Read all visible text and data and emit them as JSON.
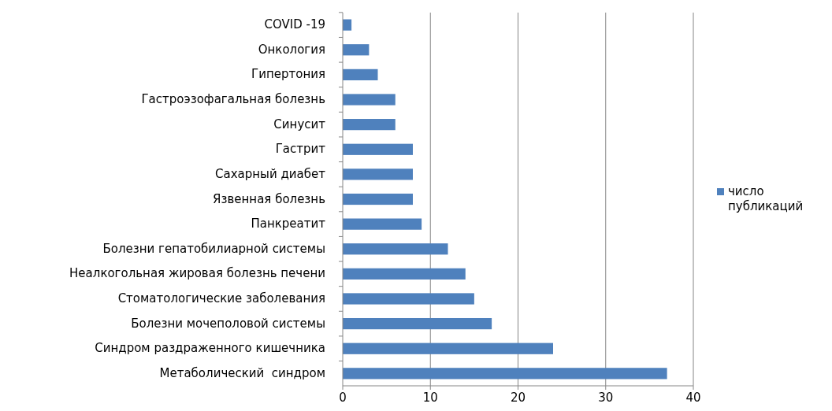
{
  "chart_data": {
    "type": "bar",
    "orientation": "horizontal",
    "categories": [
      "COVID -19",
      "Онкология",
      "Гипертония",
      "Гастроэзофагальная болезнь",
      "Синусит",
      "Гастрит",
      "Сахарный диабет",
      "Язвенная болезнь",
      "Панкреатит",
      "Болезни гепатобилиарной системы",
      "Неалкогольная жировая болезнь печени",
      "Стоматологические заболевания",
      "Болезни мочеполовой системы",
      "Синдром раздраженного кишечника",
      "Метаболический  синдром"
    ],
    "series": [
      {
        "name": "число публикаций",
        "color": "#4f81bd",
        "values": [
          1,
          3,
          4,
          6,
          6,
          8,
          8,
          8,
          9,
          12,
          14,
          15,
          17,
          24,
          37
        ]
      }
    ],
    "xlim": [
      0,
      40
    ],
    "xticks": [
      0,
      10,
      20,
      30,
      40
    ],
    "grid": "x",
    "legend": "right"
  }
}
